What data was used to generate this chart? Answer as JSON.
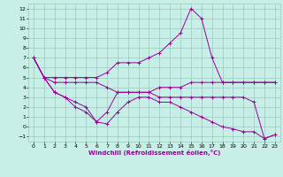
{
  "title": "",
  "xlabel": "Windchill (Refroidissement éolien,°C)",
  "ylabel": "",
  "bg_color": "#c8eee8",
  "grid_color": "#99ccbb",
  "line_color": "#990099",
  "xlim": [
    -0.5,
    23.5
  ],
  "ylim": [
    -1.5,
    12.5
  ],
  "yticks": [
    -1,
    0,
    1,
    2,
    3,
    4,
    5,
    6,
    7,
    8,
    9,
    10,
    11,
    12
  ],
  "xticks": [
    0,
    1,
    2,
    3,
    4,
    5,
    6,
    7,
    8,
    9,
    10,
    11,
    12,
    13,
    14,
    15,
    16,
    17,
    18,
    19,
    20,
    21,
    22,
    23
  ],
  "lines": [
    {
      "x": [
        0,
        1,
        2,
        3,
        4,
        5,
        6,
        7,
        8,
        9,
        10,
        11,
        12,
        13,
        14,
        15,
        16,
        17,
        18,
        19,
        20,
        21,
        22,
        23
      ],
      "y": [
        7.0,
        5.0,
        5.0,
        5.0,
        5.0,
        5.0,
        5.0,
        5.5,
        6.5,
        6.5,
        6.5,
        7.0,
        7.5,
        8.5,
        9.5,
        12.0,
        11.0,
        7.0,
        4.5,
        4.5,
        4.5,
        4.5,
        4.5,
        4.5
      ]
    },
    {
      "x": [
        0,
        1,
        2,
        3,
        4,
        5,
        6,
        7,
        8,
        9,
        10,
        11,
        12,
        13,
        14,
        15,
        16,
        17,
        18,
        19,
        20,
        21,
        22,
        23
      ],
      "y": [
        7.0,
        5.0,
        4.5,
        4.5,
        4.5,
        4.5,
        4.5,
        4.0,
        3.5,
        3.5,
        3.5,
        3.5,
        4.0,
        4.0,
        4.0,
        4.5,
        4.5,
        4.5,
        4.5,
        4.5,
        4.5,
        4.5,
        4.5,
        4.5
      ]
    },
    {
      "x": [
        0,
        1,
        2,
        3,
        4,
        5,
        6,
        7,
        8,
        9,
        10,
        11,
        12,
        13,
        14,
        15,
        16,
        17,
        18,
        19,
        20,
        21,
        22,
        23
      ],
      "y": [
        7.0,
        5.0,
        3.5,
        3.0,
        2.5,
        2.0,
        0.5,
        1.5,
        3.5,
        3.5,
        3.5,
        3.5,
        3.0,
        3.0,
        3.0,
        3.0,
        3.0,
        3.0,
        3.0,
        3.0,
        3.0,
        2.5,
        -1.2,
        -0.8
      ]
    },
    {
      "x": [
        0,
        1,
        2,
        3,
        4,
        5,
        6,
        7,
        8,
        9,
        10,
        11,
        12,
        13,
        14,
        15,
        16,
        17,
        18,
        19,
        20,
        21,
        22,
        23
      ],
      "y": [
        7.0,
        5.0,
        3.5,
        3.0,
        2.0,
        1.5,
        0.5,
        0.3,
        1.5,
        2.5,
        3.0,
        3.0,
        2.5,
        2.5,
        2.0,
        1.5,
        1.0,
        0.5,
        0.0,
        -0.2,
        -0.5,
        -0.5,
        -1.2,
        -0.8
      ]
    }
  ]
}
